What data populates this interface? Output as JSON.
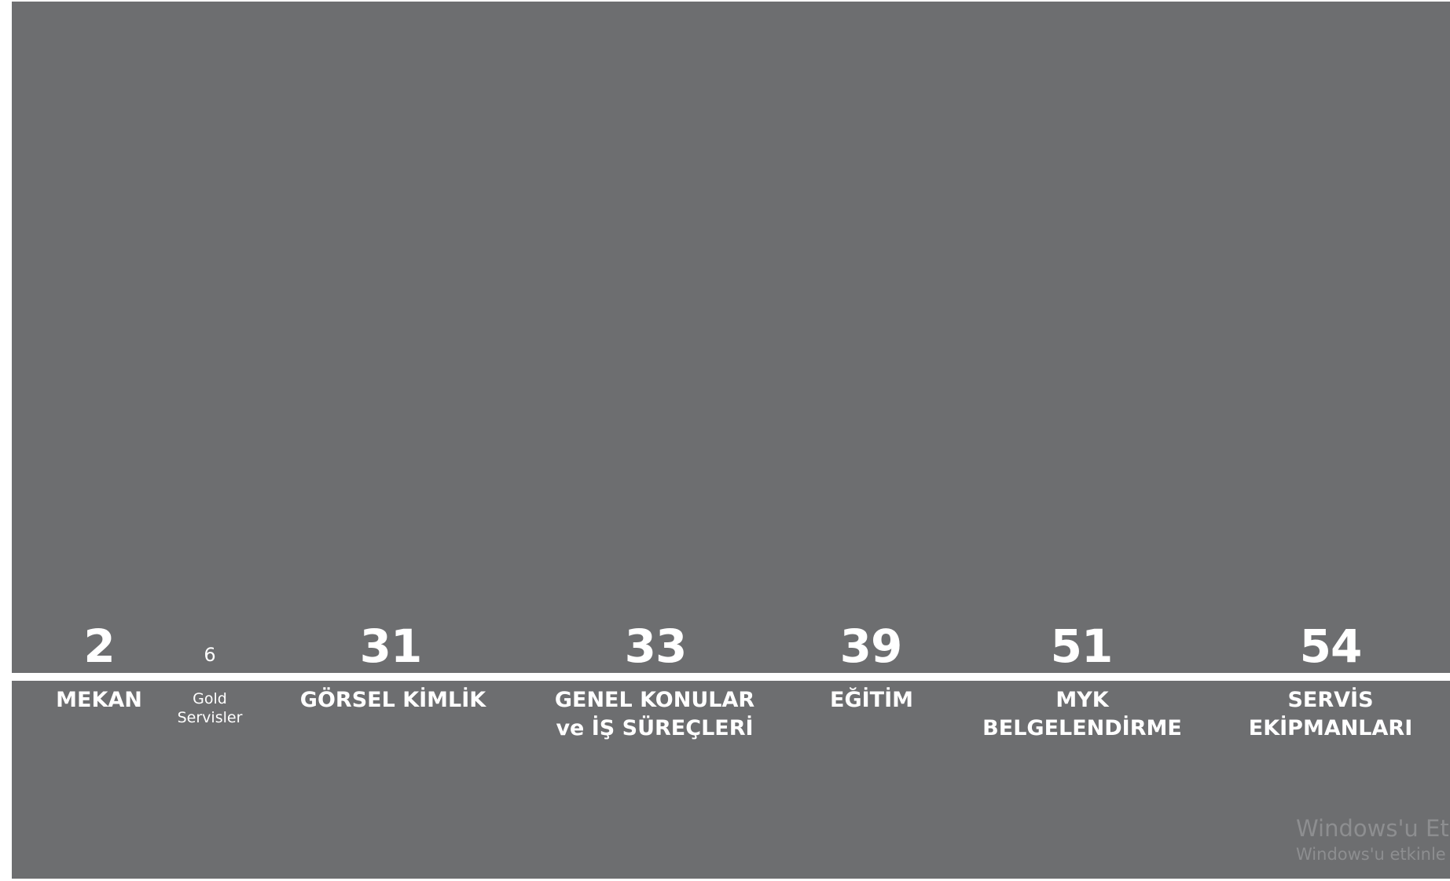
{
  "sections": [
    {
      "number": "2",
      "label": "MEKAN"
    },
    {
      "number": "6",
      "label_line1": "Gold",
      "label_line2": "Servisler"
    },
    {
      "number": "31",
      "label": "GÖRSEL KİMLİK"
    },
    {
      "number": "33",
      "label_line1": "GENEL KONULAR",
      "label_line2": "ve İŞ SÜREÇLERİ"
    },
    {
      "number": "39",
      "label": "EĞİTİM"
    },
    {
      "number": "51",
      "label_line1": "MYK",
      "label_line2": "BELGELENDİRME"
    },
    {
      "number": "54",
      "label_line1": "SERVİS",
      "label_line2": "EKİPMANLARI"
    }
  ],
  "watermark": {
    "title": "Windows'u Et",
    "subtitle": "Windows'u etkinle"
  },
  "colors": {
    "background": "#6d6e70",
    "text": "#ffffff",
    "divider": "#ffffff",
    "watermark": "#8d8e90"
  }
}
